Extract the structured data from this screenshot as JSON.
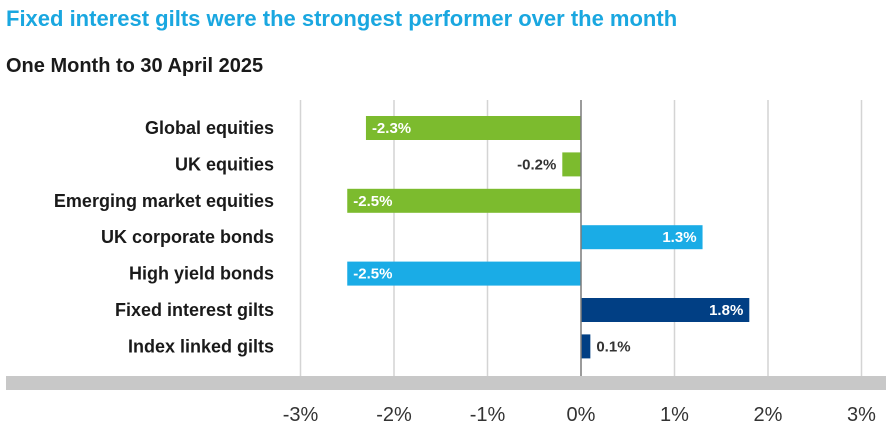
{
  "title": "Fixed interest gilts were the strongest performer over the month",
  "subtitle": "One Month to 30 April 2025",
  "chart_data": {
    "type": "bar",
    "orientation": "horizontal",
    "title": "Fixed interest gilts were the strongest performer over the month",
    "subtitle": "One Month to 30 April 2025",
    "xlabel": "",
    "ylabel": "",
    "xlim": [
      -3,
      3
    ],
    "x_ticks": [
      -3,
      -2,
      -1,
      0,
      1,
      2,
      3
    ],
    "x_tick_labels": [
      "-3%",
      "-2%",
      "-1%",
      "0%",
      "1%",
      "2%",
      "3%"
    ],
    "grid": "vertical",
    "categories": [
      "Global equities",
      "UK equities",
      "Emerging market equities",
      "UK corporate bonds",
      "High yield bonds",
      "Fixed interest gilts",
      "Index linked gilts"
    ],
    "values": [
      -2.3,
      -0.2,
      -2.5,
      1.3,
      -2.5,
      1.8,
      0.1
    ],
    "value_labels": [
      "-2.3%",
      "-0.2%",
      "-2.5%",
      "1.3%",
      "-2.5%",
      "1.8%",
      "0.1%"
    ],
    "bar_colors": [
      "#7cbb2e",
      "#7cbb2e",
      "#7cbb2e",
      "#1aace6",
      "#1aace6",
      "#013f84",
      "#013f84"
    ],
    "axis_band_color": "#c8c8c8",
    "grid_color": "#d4d4d4"
  }
}
